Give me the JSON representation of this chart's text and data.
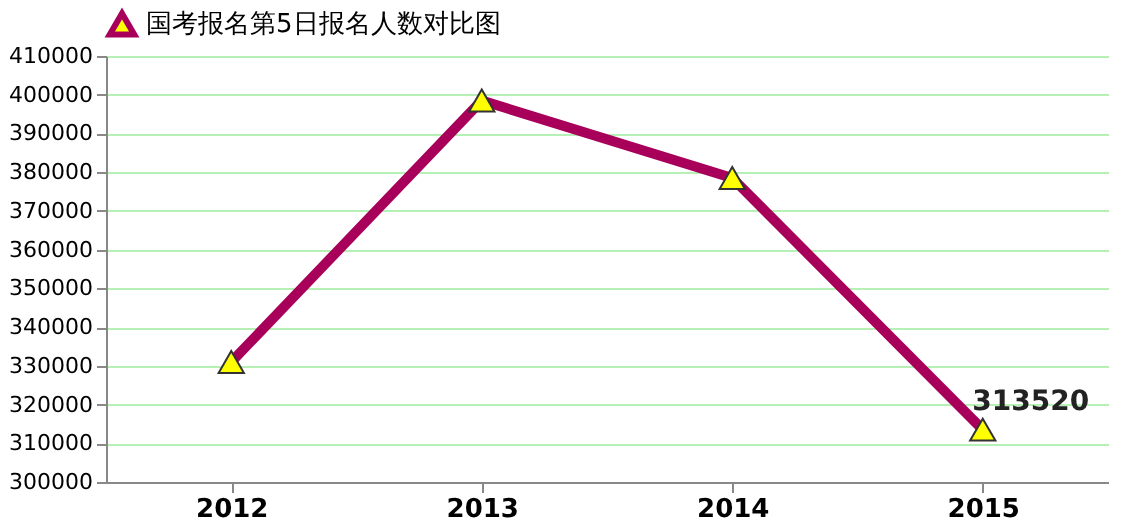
{
  "chart_data": {
    "type": "line",
    "categories": [
      "2012",
      "2013",
      "2014",
      "2015"
    ],
    "series": [
      {
        "name": "国考报名第5日报名人数对比图",
        "color": "#a8005a",
        "values": [
          331000,
          398500,
          378500,
          313520
        ],
        "value_labels": [
          null,
          null,
          null,
          "313520"
        ]
      }
    ],
    "ylim": [
      300000,
      410000
    ],
    "yticks": [
      300000,
      310000,
      320000,
      330000,
      340000,
      350000,
      360000,
      370000,
      380000,
      390000,
      400000,
      410000
    ],
    "grid": "y",
    "legend": "top",
    "marker": "triangle",
    "line_style": "solid"
  }
}
